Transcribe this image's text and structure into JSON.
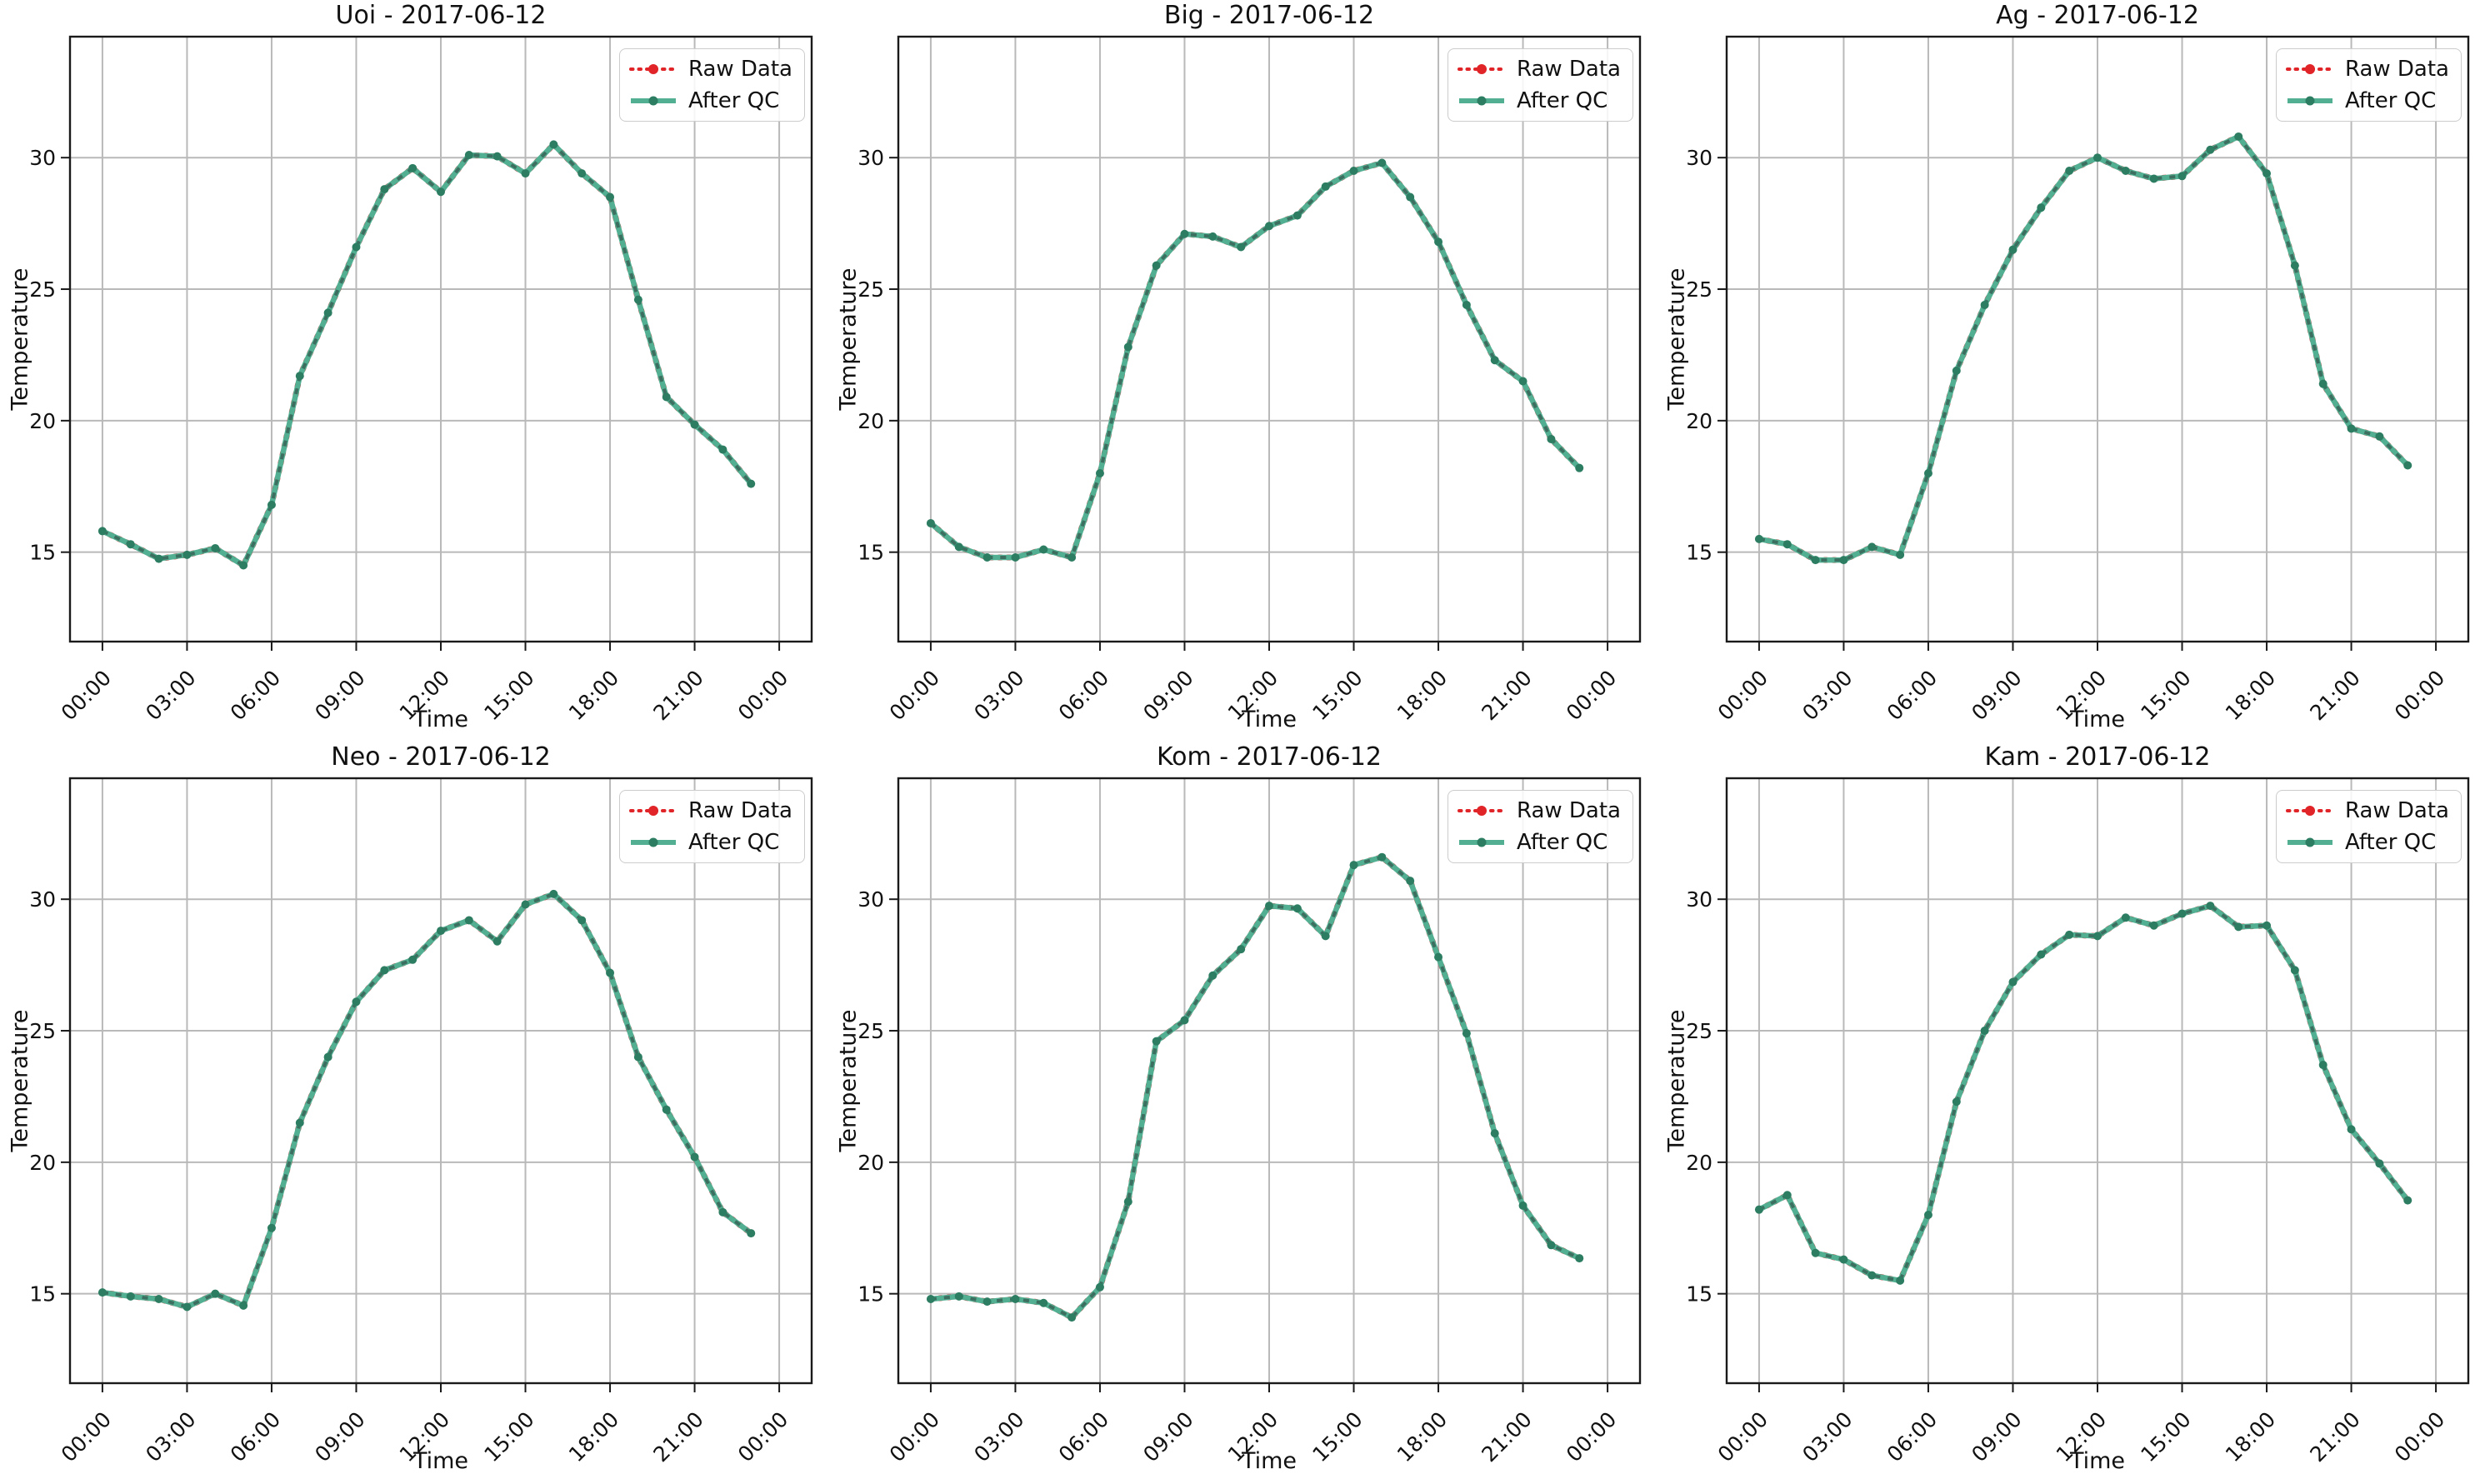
{
  "figure": {
    "type": "matplotlib-multipanel",
    "background": "#ffffff",
    "rows": 2,
    "cols": 3
  },
  "colors": {
    "raw": "#e02428",
    "qc_line": "#52af92",
    "qc_dash": "#3c6f5f",
    "qc_marker": "#2d7d63",
    "grid": "#b9b9b9",
    "spine": "#1a1a1a",
    "text": "#111111",
    "legend_border": "#cccccc"
  },
  "legend": {
    "raw_label": "Raw Data",
    "qc_label": "After QC",
    "position": "upper right"
  },
  "axes": {
    "xlabel": "Time",
    "ylabel": "Temperature",
    "yticks": [
      15,
      20,
      25,
      30
    ],
    "xticks": [
      "00:00",
      "03:00",
      "06:00",
      "09:00",
      "12:00",
      "15:00",
      "18:00",
      "21:00",
      "00:00"
    ],
    "xtick_hours": [
      0,
      3,
      6,
      9,
      12,
      15,
      18,
      21,
      24
    ],
    "xlim": [
      -1.15,
      25.15
    ],
    "ylim": [
      11.6,
      34.6
    ],
    "grid": true
  },
  "chart_data": [
    {
      "type": "line",
      "station": "Uoi",
      "date": "2017-06-12",
      "title": "Uoi - 2017-06-12",
      "x_hours": [
        0,
        1,
        2,
        3,
        4,
        5,
        6,
        7,
        8,
        9,
        10,
        11,
        12,
        13,
        14,
        15,
        16,
        17,
        18,
        19,
        20,
        21,
        22,
        23
      ],
      "series": [
        {
          "name": "Raw Data",
          "color": "#e02428",
          "style": "dotted",
          "values": [
            15.8,
            15.3,
            14.75,
            14.9,
            15.15,
            14.5,
            16.8,
            21.7,
            24.1,
            26.6,
            28.8,
            29.6,
            28.7,
            30.1,
            30.05,
            29.4,
            30.5,
            29.4,
            28.5,
            24.6,
            20.9,
            19.85,
            18.9,
            17.6
          ]
        },
        {
          "name": "After QC",
          "color": "#52af92",
          "style": "solid",
          "values": [
            15.8,
            15.3,
            14.75,
            14.9,
            15.15,
            14.5,
            16.8,
            21.7,
            24.1,
            26.6,
            28.8,
            29.6,
            28.7,
            30.1,
            30.05,
            29.4,
            30.5,
            29.4,
            28.5,
            24.6,
            20.9,
            19.85,
            18.9,
            17.6
          ]
        }
      ]
    },
    {
      "type": "line",
      "station": "Big",
      "date": "2017-06-12",
      "title": "Big - 2017-06-12",
      "x_hours": [
        0,
        1,
        2,
        3,
        4,
        5,
        6,
        7,
        8,
        9,
        10,
        11,
        12,
        13,
        14,
        15,
        16,
        17,
        18,
        19,
        20,
        21,
        22,
        23
      ],
      "series": [
        {
          "name": "Raw Data",
          "color": "#e02428",
          "style": "dotted",
          "values": [
            16.1,
            15.2,
            14.8,
            14.8,
            15.1,
            14.8,
            18.0,
            22.8,
            25.9,
            27.1,
            27.0,
            26.6,
            27.4,
            27.8,
            28.9,
            29.5,
            29.8,
            28.5,
            26.8,
            24.4,
            22.3,
            21.5,
            19.3,
            18.2
          ]
        },
        {
          "name": "After QC",
          "color": "#52af92",
          "style": "solid",
          "values": [
            16.1,
            15.2,
            14.8,
            14.8,
            15.1,
            14.8,
            18.0,
            22.8,
            25.9,
            27.1,
            27.0,
            26.6,
            27.4,
            27.8,
            28.9,
            29.5,
            29.8,
            28.5,
            26.8,
            24.4,
            22.3,
            21.5,
            19.3,
            18.2
          ]
        }
      ]
    },
    {
      "type": "line",
      "station": "Ag",
      "date": "2017-06-12",
      "title": "Ag - 2017-06-12",
      "x_hours": [
        0,
        1,
        2,
        3,
        4,
        5,
        6,
        7,
        8,
        9,
        10,
        11,
        12,
        13,
        14,
        15,
        16,
        17,
        18,
        19,
        20,
        21,
        22,
        23
      ],
      "series": [
        {
          "name": "Raw Data",
          "color": "#e02428",
          "style": "dotted",
          "values": [
            15.5,
            15.3,
            14.7,
            14.7,
            15.2,
            14.9,
            18.0,
            21.9,
            24.4,
            26.5,
            28.1,
            29.5,
            30.0,
            29.5,
            29.2,
            29.3,
            30.3,
            30.8,
            29.4,
            25.9,
            21.4,
            19.7,
            19.4,
            18.3
          ]
        },
        {
          "name": "After QC",
          "color": "#52af92",
          "style": "solid",
          "values": [
            15.5,
            15.3,
            14.7,
            14.7,
            15.2,
            14.9,
            18.0,
            21.9,
            24.4,
            26.5,
            28.1,
            29.5,
            30.0,
            29.5,
            29.2,
            29.3,
            30.3,
            30.8,
            29.4,
            25.9,
            21.4,
            19.7,
            19.4,
            18.3
          ]
        }
      ]
    },
    {
      "type": "line",
      "station": "Neo",
      "date": "2017-06-12",
      "title": "Neo - 2017-06-12",
      "x_hours": [
        0,
        1,
        2,
        3,
        4,
        5,
        6,
        7,
        8,
        9,
        10,
        11,
        12,
        13,
        14,
        15,
        16,
        17,
        18,
        19,
        20,
        21,
        22,
        23
      ],
      "series": [
        {
          "name": "Raw Data",
          "color": "#e02428",
          "style": "dotted",
          "values": [
            15.05,
            14.9,
            14.8,
            14.5,
            15.0,
            14.55,
            17.5,
            21.5,
            24.0,
            26.1,
            27.3,
            27.7,
            28.8,
            29.2,
            28.4,
            29.8,
            30.2,
            29.2,
            27.2,
            24.0,
            22.0,
            20.2,
            18.1,
            17.3
          ]
        },
        {
          "name": "After QC",
          "color": "#52af92",
          "style": "solid",
          "values": [
            15.05,
            14.9,
            14.8,
            14.5,
            15.0,
            14.55,
            17.5,
            21.5,
            24.0,
            26.1,
            27.3,
            27.7,
            28.8,
            29.2,
            28.4,
            29.8,
            30.2,
            29.2,
            27.2,
            24.0,
            22.0,
            20.2,
            18.1,
            17.3
          ]
        }
      ]
    },
    {
      "type": "line",
      "station": "Kom",
      "date": "2017-06-12",
      "title": "Kom - 2017-06-12",
      "x_hours": [
        0,
        1,
        2,
        3,
        4,
        5,
        6,
        7,
        8,
        9,
        10,
        11,
        12,
        13,
        14,
        15,
        16,
        17,
        18,
        19,
        20,
        21,
        22,
        23
      ],
      "series": [
        {
          "name": "Raw Data",
          "color": "#e02428",
          "style": "dotted",
          "values": [
            14.8,
            14.9,
            14.7,
            14.8,
            14.65,
            14.1,
            15.25,
            18.5,
            24.6,
            25.4,
            27.1,
            28.1,
            29.75,
            29.65,
            28.6,
            31.3,
            31.6,
            30.7,
            27.8,
            24.9,
            21.1,
            18.35,
            16.85,
            16.35
          ]
        },
        {
          "name": "After QC",
          "color": "#52af92",
          "style": "solid",
          "values": [
            14.8,
            14.9,
            14.7,
            14.8,
            14.65,
            14.1,
            15.25,
            18.5,
            24.6,
            25.4,
            27.1,
            28.1,
            29.75,
            29.65,
            28.6,
            31.3,
            31.6,
            30.7,
            27.8,
            24.9,
            21.1,
            18.35,
            16.85,
            16.35
          ]
        }
      ]
    },
    {
      "type": "line",
      "station": "Kam",
      "date": "2017-06-12",
      "title": "Kam - 2017-06-12",
      "x_hours": [
        0,
        1,
        2,
        3,
        4,
        5,
        6,
        7,
        8,
        9,
        10,
        11,
        12,
        13,
        14,
        15,
        16,
        17,
        18,
        19,
        20,
        21,
        22,
        23
      ],
      "series": [
        {
          "name": "Raw Data",
          "color": "#e02428",
          "style": "dotted",
          "values": [
            18.2,
            18.75,
            16.55,
            16.3,
            15.7,
            15.5,
            18.0,
            22.3,
            25.0,
            26.85,
            27.9,
            28.65,
            28.6,
            29.3,
            29.0,
            29.45,
            29.75,
            28.95,
            29.0,
            27.3,
            23.7,
            21.25,
            19.95,
            18.55
          ]
        },
        {
          "name": "After QC",
          "color": "#52af92",
          "style": "solid",
          "values": [
            18.2,
            18.75,
            16.55,
            16.3,
            15.7,
            15.5,
            18.0,
            22.3,
            25.0,
            26.85,
            27.9,
            28.65,
            28.6,
            29.3,
            29.0,
            29.45,
            29.75,
            28.95,
            29.0,
            27.3,
            23.7,
            21.25,
            19.95,
            18.55
          ]
        }
      ]
    }
  ]
}
